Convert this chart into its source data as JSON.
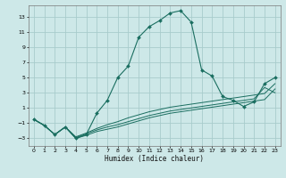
{
  "title": "",
  "xlabel": "Humidex (Indice chaleur)",
  "ylabel": "",
  "background_color": "#cde8e8",
  "grid_color": "#a8cccc",
  "line_color": "#1a6e60",
  "xlim": [
    -0.5,
    23.5
  ],
  "ylim": [
    -4,
    14.5
  ],
  "yticks": [
    -3,
    -1,
    1,
    3,
    5,
    7,
    9,
    11,
    13
  ],
  "xticks": [
    0,
    1,
    2,
    3,
    4,
    5,
    6,
    7,
    8,
    9,
    10,
    11,
    12,
    13,
    14,
    15,
    16,
    17,
    18,
    19,
    20,
    21,
    22,
    23
  ],
  "main_line_x": [
    0,
    1,
    2,
    3,
    4,
    5,
    6,
    7,
    8,
    9,
    10,
    11,
    12,
    13,
    14,
    15,
    16,
    17,
    18,
    19,
    20,
    21,
    22,
    23
  ],
  "main_line_y": [
    -0.5,
    -1.3,
    -2.5,
    -1.5,
    -3.0,
    -2.5,
    0.3,
    2.0,
    5.0,
    6.5,
    10.3,
    11.7,
    12.5,
    13.5,
    13.8,
    12.3,
    6.0,
    5.2,
    2.5,
    2.0,
    1.2,
    1.8,
    4.2,
    5.0
  ],
  "line2_x": [
    0,
    1,
    2,
    3,
    4,
    5,
    6,
    7,
    8,
    9,
    10,
    11,
    12,
    13,
    14,
    15,
    16,
    17,
    18,
    19,
    20,
    21,
    22,
    23
  ],
  "line2_y": [
    -0.5,
    -1.3,
    -2.5,
    -1.5,
    -3.0,
    -2.6,
    -2.1,
    -1.8,
    -1.5,
    -1.1,
    -0.7,
    -0.3,
    0.0,
    0.3,
    0.5,
    0.7,
    0.9,
    1.1,
    1.3,
    1.5,
    1.7,
    1.9,
    2.1,
    3.5
  ],
  "line3_x": [
    0,
    1,
    2,
    3,
    4,
    5,
    6,
    7,
    8,
    9,
    10,
    11,
    12,
    13,
    14,
    15,
    16,
    17,
    18,
    19,
    20,
    21,
    22,
    23
  ],
  "line3_y": [
    -0.5,
    -1.3,
    -2.5,
    -1.5,
    -2.9,
    -2.4,
    -1.9,
    -1.5,
    -1.2,
    -0.8,
    -0.4,
    0.0,
    0.3,
    0.6,
    0.8,
    1.0,
    1.2,
    1.4,
    1.6,
    1.8,
    2.0,
    2.2,
    3.7,
    3.0
  ],
  "line4_x": [
    0,
    1,
    2,
    3,
    4,
    5,
    6,
    7,
    8,
    9,
    10,
    11,
    12,
    13,
    14,
    15,
    16,
    17,
    18,
    19,
    20,
    21,
    22,
    23
  ],
  "line4_y": [
    -0.5,
    -1.3,
    -2.5,
    -1.5,
    -2.8,
    -2.3,
    -1.7,
    -1.2,
    -0.8,
    -0.3,
    0.1,
    0.5,
    0.8,
    1.1,
    1.3,
    1.5,
    1.7,
    1.9,
    2.1,
    2.3,
    2.5,
    2.7,
    2.9,
    4.2
  ]
}
